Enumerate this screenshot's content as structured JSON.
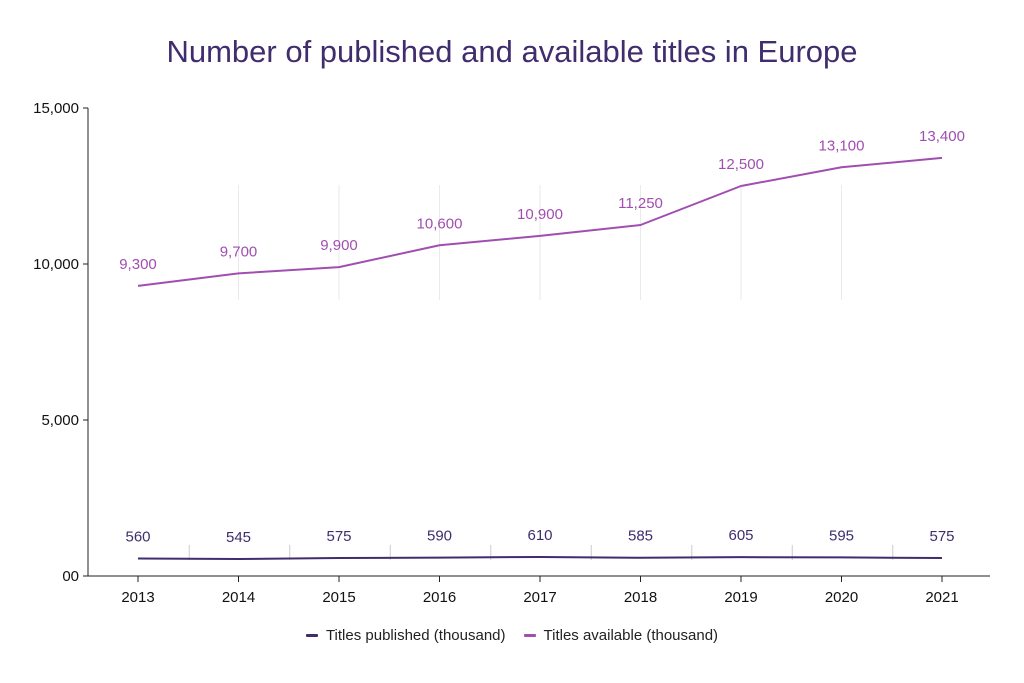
{
  "chart_data": {
    "type": "line",
    "title": "Number of published and available titles in Europe",
    "x": [
      "2013",
      "2014",
      "2015",
      "2016",
      "2017",
      "2018",
      "2019",
      "2020",
      "2021"
    ],
    "ylim": [
      0,
      15000
    ],
    "yticks": [
      0,
      5000,
      10000,
      15000
    ],
    "ytick_labels": [
      "00",
      "5,000",
      "10,000",
      "15,000"
    ],
    "grid": false,
    "legend_position": "bottom",
    "series": [
      {
        "name": "Titles published (thousand)",
        "color": "#3f2d6e",
        "values": [
          560,
          545,
          575,
          590,
          610,
          585,
          605,
          595,
          575
        ],
        "labels": [
          "560",
          "545",
          "575",
          "590",
          "610",
          "585",
          "605",
          "595",
          "575"
        ]
      },
      {
        "name": "Titles available (thousand)",
        "color": "#a04eb0",
        "values": [
          9300,
          9700,
          9900,
          10600,
          10900,
          11250,
          12500,
          13100,
          13400
        ],
        "labels": [
          "9,300",
          "9,700",
          "9,900",
          "10,600",
          "10,900",
          "11,250",
          "12,500",
          "13,100",
          "13,400"
        ]
      }
    ]
  }
}
